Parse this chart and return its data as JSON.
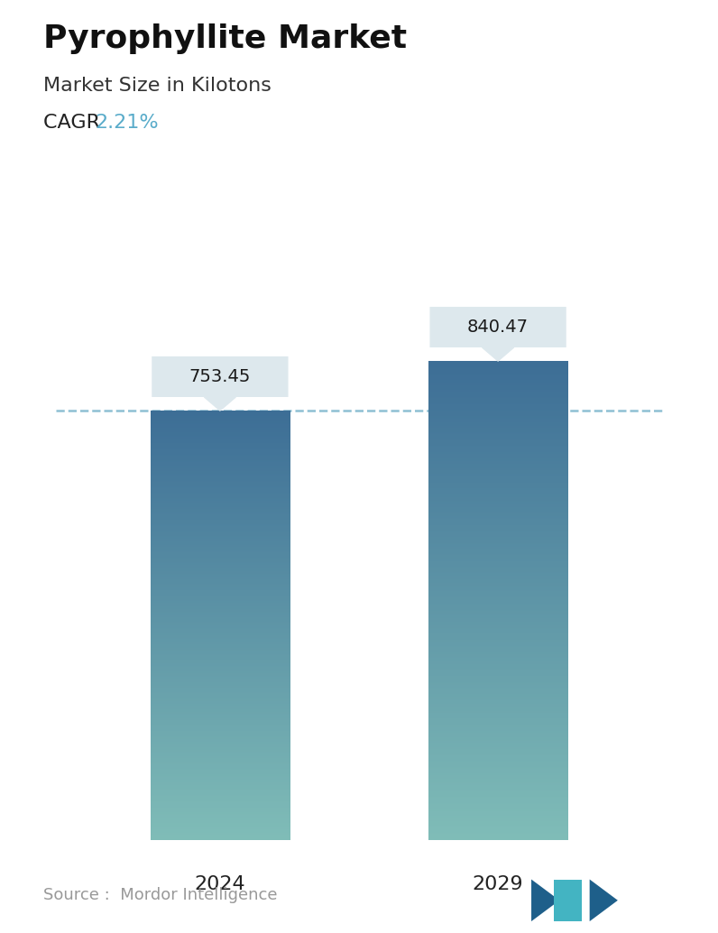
{
  "title": "Pyrophyllite Market",
  "subtitle": "Market Size in Kilotons",
  "cagr_label": "CAGR ",
  "cagr_value": "2.21%",
  "cagr_color": "#5aacca",
  "categories": [
    "2024",
    "2029"
  ],
  "values": [
    753.45,
    840.47
  ],
  "bar_color_top": "#3d6e96",
  "bar_color_bottom": "#80bdb8",
  "dashed_line_color": "#7ab5cc",
  "callout_bg": "#dde8ed",
  "callout_text_color": "#1a1a1a",
  "source_text": "Source :  Mordor Intelligence",
  "source_color": "#999999",
  "background_color": "#ffffff",
  "title_fontsize": 26,
  "subtitle_fontsize": 16,
  "cagr_fontsize": 16,
  "callout_fontsize": 14,
  "xlabel_fontsize": 16,
  "source_fontsize": 13,
  "ylim": [
    0,
    950
  ],
  "bar_positions": [
    0.28,
    0.72
  ],
  "bar_width": 0.22
}
